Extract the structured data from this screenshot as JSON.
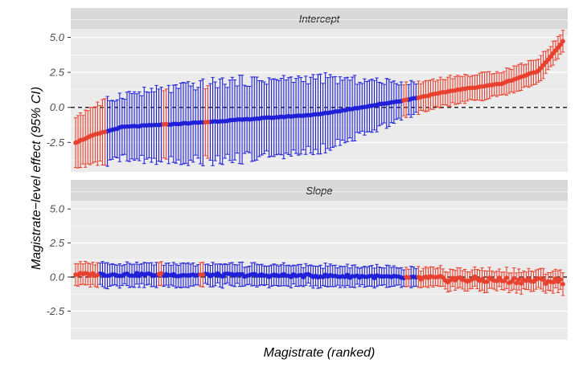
{
  "chart_data": {
    "type": "scatter",
    "xlabel": "Magistrate (ranked)",
    "ylabel": "Magistrate−level effect (95% CI)",
    "n_magistrates": 200,
    "colors": {
      "red": "#e8412f",
      "blue": "#1f20d8",
      "panel_bg": "#ebebeb",
      "strip_bg": "#d9d9d9",
      "grid": "#ffffff"
    },
    "panels": [
      {
        "strip_label": "Intercept",
        "ylim": [
          -4.6,
          5.6
        ],
        "yticks": [
          5.0,
          2.5,
          0.0,
          -2.5
        ],
        "ytick_labels": [
          "5.0",
          "2.5",
          "0.0",
          "-2.5"
        ],
        "reference_line": 0,
        "trend": [
          [
            1,
            -2.5
          ],
          [
            8,
            -2.0
          ],
          [
            20,
            -1.4
          ],
          [
            50,
            -1.1
          ],
          [
            100,
            -0.5
          ],
          [
            135,
            0.5
          ],
          [
            155,
            1.2
          ],
          [
            175,
            1.7
          ],
          [
            190,
            2.6
          ],
          [
            200,
            4.7
          ]
        ],
        "ci_halfwidth": [
          [
            1,
            1.9
          ],
          [
            20,
            2.3
          ],
          [
            60,
            2.8
          ],
          [
            100,
            2.6
          ],
          [
            140,
            1.1
          ],
          [
            165,
            0.9
          ],
          [
            190,
            0.9
          ],
          [
            200,
            0.7
          ]
        ],
        "red_ranges": [
          [
            1,
            13
          ],
          [
            37,
            38
          ],
          [
            54,
            55
          ],
          [
            135,
            136
          ],
          [
            141,
            200
          ]
        ]
      },
      {
        "strip_label": "Slope",
        "ylim": [
          -4.6,
          5.6
        ],
        "yticks": [
          5.0,
          2.5,
          0.0,
          -2.5
        ],
        "ytick_labels": [
          "5.0",
          "2.5",
          "0.0",
          "-2.5"
        ],
        "reference_line": 0,
        "trend": [
          [
            1,
            0.2
          ],
          [
            60,
            0.15
          ],
          [
            120,
            0.05
          ],
          [
            150,
            -0.15
          ],
          [
            200,
            -0.3
          ]
        ],
        "ci_halfwidth": [
          [
            1,
            0.85
          ],
          [
            140,
            0.7
          ],
          [
            200,
            0.75
          ]
        ],
        "red_ranges": [
          [
            1,
            10
          ],
          [
            35,
            36
          ],
          [
            52,
            53
          ],
          [
            136,
            137
          ],
          [
            141,
            200
          ]
        ]
      }
    ]
  }
}
